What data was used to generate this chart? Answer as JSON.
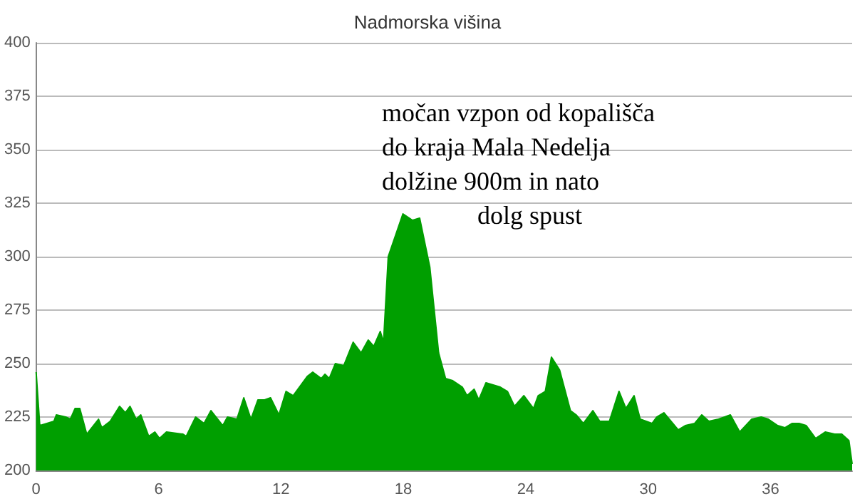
{
  "chart_data": {
    "type": "area",
    "title": "Nadmorska višina",
    "annotations": [
      "močan vzpon od kopališča\ndo kraja Mala Nedelja\ndolžine 900m in nato\ndolg spust"
    ],
    "x": [
      0,
      0.18,
      0.53,
      0.87,
      0.99,
      1.45,
      1.68,
      1.91,
      2.14,
      2.48,
      3.06,
      3.22,
      3.63,
      4.09,
      4.37,
      4.6,
      4.9,
      5.13,
      5.52,
      5.82,
      6.05,
      6.39,
      7.2,
      7.36,
      7.82,
      8.23,
      8.57,
      9.15,
      9.38,
      9.84,
      10.18,
      10.53,
      10.87,
      11.2,
      11.49,
      11.9,
      12.25,
      12.6,
      13.29,
      13.56,
      13.98,
      14.16,
      14.37,
      14.67,
      15.08,
      15.54,
      15.93,
      16.28,
      16.55,
      16.87,
      17.03,
      17.26,
      17.98,
      18.45,
      18.8,
      19.3,
      19.73,
      20.07,
      20.42,
      20.89,
      21.12,
      21.47,
      21.7,
      22.05,
      22.75,
      23.1,
      23.45,
      23.91,
      24.38,
      24.61,
      24.96,
      25.26,
      25.66,
      26.19,
      26.47,
      26.82,
      27.29,
      27.63,
      28.1,
      28.57,
      28.91,
      29.31,
      29.61,
      30.19,
      30.42,
      30.77,
      31.47,
      31.82,
      32.28,
      32.63,
      32.98,
      33.45,
      34.03,
      34.49,
      35.08,
      35.54,
      35.89,
      36.35,
      36.7,
      37.05,
      37.4,
      37.75,
      38.21,
      38.68,
      39.14,
      39.49,
      39.84,
      40
    ],
    "series": [
      {
        "color": "#009f00",
        "values": [
          246,
          221,
          222,
          223,
          226,
          225,
          224,
          229,
          229,
          217,
          224,
          220,
          223,
          230,
          227,
          230,
          224,
          226,
          216,
          218,
          215,
          218,
          217,
          216,
          225,
          222,
          228,
          221,
          225,
          224,
          234,
          224,
          233,
          233,
          234,
          226,
          237,
          235,
          244,
          246,
          243,
          245,
          243,
          250,
          249,
          260,
          255,
          261,
          258,
          265,
          260,
          300,
          320,
          317,
          318,
          295,
          255,
          243,
          242,
          239,
          235,
          238,
          233,
          241,
          239,
          237,
          230,
          235,
          229,
          235,
          237,
          253,
          247,
          228,
          226,
          222,
          228,
          223,
          223,
          237,
          229,
          235,
          224,
          222,
          225,
          227,
          219,
          221,
          222,
          226,
          223,
          224,
          226,
          218,
          224,
          225,
          224,
          221,
          220,
          222,
          222,
          221,
          215,
          218,
          217,
          217,
          214,
          203
        ]
      }
    ],
    "xlim": [
      0,
      40
    ],
    "xticks": [
      0,
      6,
      12,
      18,
      24,
      30,
      36
    ],
    "ylim": [
      200,
      400
    ],
    "yticks": [
      200,
      225,
      250,
      275,
      300,
      325,
      350,
      375,
      400
    ],
    "grid": "y",
    "marker": "none",
    "line_style": "solid"
  }
}
